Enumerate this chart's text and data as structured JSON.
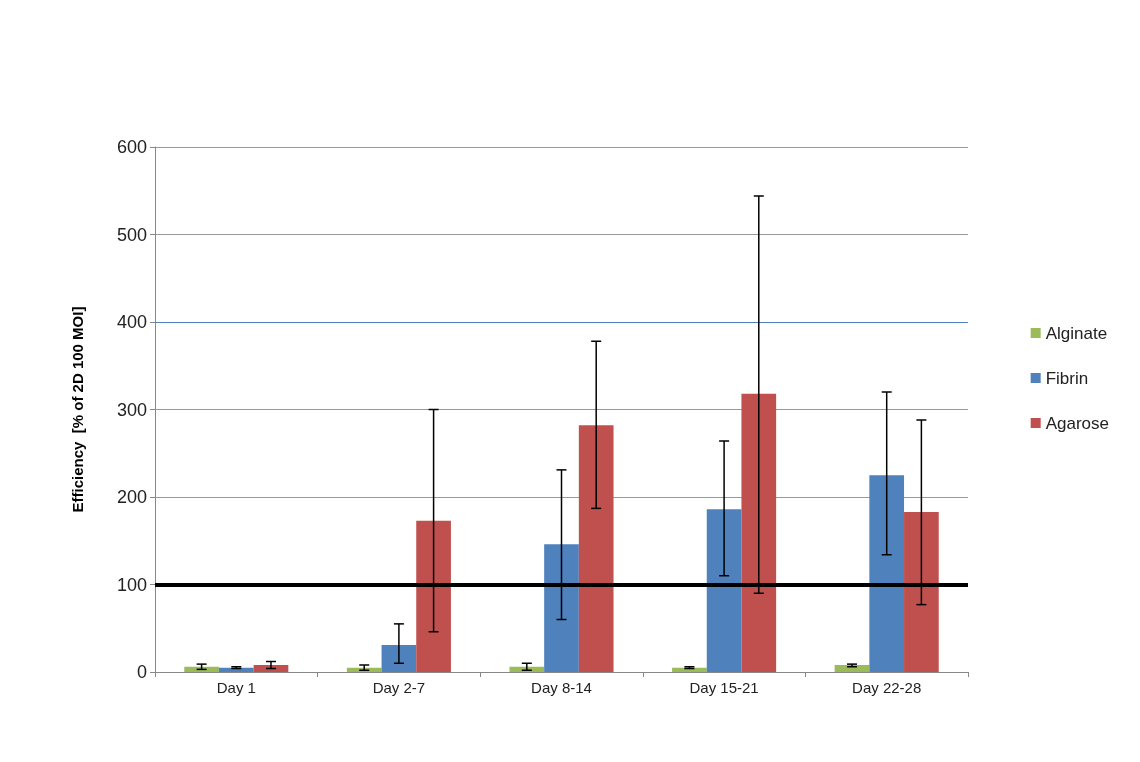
{
  "chart_data": {
    "type": "bar",
    "ylabel": "Efficiency  [% of 2D 100 MOI]",
    "categories": [
      "Day 1",
      "Day 2-7",
      "Day 8-14",
      "Day 15-21",
      "Day 22-28"
    ],
    "series": [
      {
        "name": "Alginate",
        "color": "#9bbb59",
        "values": [
          6,
          5,
          6,
          5,
          8
        ],
        "errors": [
          [
            3,
            9
          ],
          [
            2,
            8
          ],
          [
            2,
            10
          ],
          [
            4,
            6
          ],
          [
            6,
            9
          ]
        ]
      },
      {
        "name": "Fibrin",
        "color": "#4f81bd",
        "values": [
          5,
          31,
          146,
          186,
          225
        ],
        "errors": [
          [
            4,
            6
          ],
          [
            10,
            55
          ],
          [
            60,
            231
          ],
          [
            110,
            264
          ],
          [
            134,
            320
          ]
        ]
      },
      {
        "name": "Agarose",
        "color": "#c0504d",
        "values": [
          8,
          173,
          282,
          318,
          183
        ],
        "errors": [
          [
            4,
            12
          ],
          [
            46,
            300
          ],
          [
            187,
            378
          ],
          [
            90,
            544
          ],
          [
            77,
            288
          ]
        ]
      }
    ],
    "ylim": [
      0,
      600
    ],
    "yticks": [
      0,
      100,
      200,
      300,
      400,
      500,
      600
    ],
    "grid": "y",
    "legend": "right",
    "ref_lines": [
      {
        "axis": "y",
        "value": 400,
        "color": "#4f81bd",
        "line_style": "solid"
      },
      {
        "axis": "y",
        "value": 100,
        "color": "#000000",
        "line_style": "solid"
      }
    ]
  }
}
